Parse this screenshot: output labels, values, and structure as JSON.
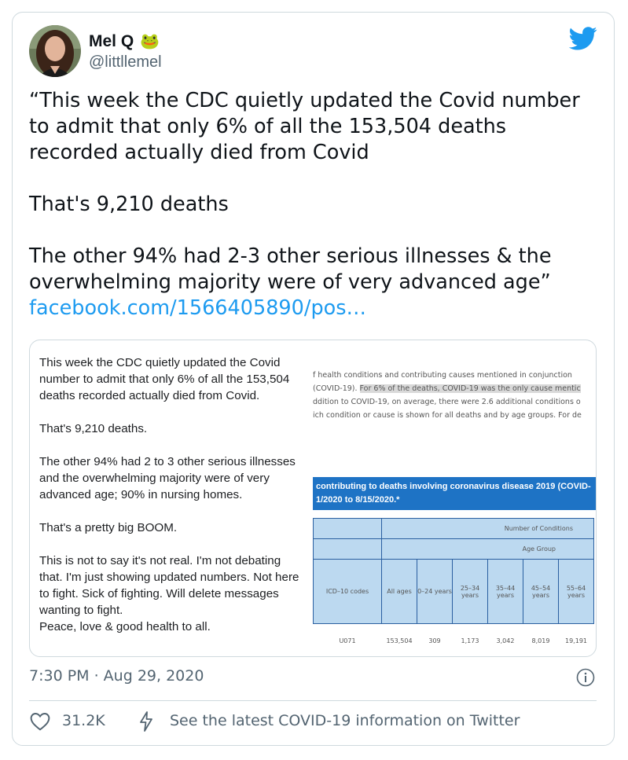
{
  "author": {
    "name": "Mel Q",
    "emoji": "🐸",
    "handle": "@littllemel",
    "avatar_icon": "profile-photo"
  },
  "tweet": {
    "p1": "“This week the CDC quietly updated the Covid number to admit that only 6% of all the 153,504 deaths recorded actually died from Covid",
    "p2": "That's 9,210 deaths",
    "p3": "The other 94% had 2-3 other serious illnesses & the overwhelming majority were of very advanced age”",
    "link": "facebook.com/1566405890/pos…"
  },
  "media": {
    "fb_post": {
      "p1": "This week the CDC quietly updated the Covid number to admit that only 6% of all the 153,504 deaths recorded actually died from Covid.",
      "p2": "That's 9,210 deaths.",
      "p3": "The other 94% had 2 to 3 other serious illnesses and the overwhelming majority were of very advanced age; 90% in nursing homes.",
      "p4": "That's a pretty big BOOM.",
      "p5": "This is not to say it's not real. I'm not debating that. I'm just showing updated numbers. Not here to fight. Sick of fighting. Will delete messages wanting to fight.",
      "p6": "Peace, love & good health to all."
    },
    "document": {
      "line1": "f health conditions and contributing causes mentioned in conjunction",
      "line2a": "(COVID-19). ",
      "line2b": "For 6% of the deaths, COVID-19 was the only cause mentic",
      "line3": "ddition to COVID-19, on average, there were 2.6 additional conditions o",
      "line4": "ich condition or cause is shown for all deaths and by age groups. For de",
      "band_line1": "contributing to deaths involving coronavirus disease 2019 (COVID-",
      "band_line2": "1/2020 to 8/15/2020.*",
      "table": {
        "header_conditions": "Number of Conditions",
        "header_age": "Age Group",
        "col_codes": "ICD–10 codes",
        "columns": [
          "All ages",
          "0–24 years",
          "25–34 years",
          "35–44 years",
          "45–54 years",
          "55–64 years"
        ],
        "row_code": "U071",
        "row_values": [
          "153,504",
          "309",
          "1,173",
          "3,042",
          "8,019",
          "19,191"
        ]
      }
    }
  },
  "footer": {
    "timestamp": "7:30 PM · Aug 29, 2020",
    "likes": "31.2K",
    "covid_notice": "See the latest COVID-19 information on Twitter"
  },
  "colors": {
    "twitter_blue": "#1d9bf0",
    "text": "#0f1419",
    "muted": "#536471",
    "table_band": "#1e73c5",
    "table_fill": "#bcd9f0"
  },
  "icons": [
    "twitter-bird-icon",
    "info-icon",
    "heart-icon",
    "flash-icon",
    "frog-emoji"
  ]
}
